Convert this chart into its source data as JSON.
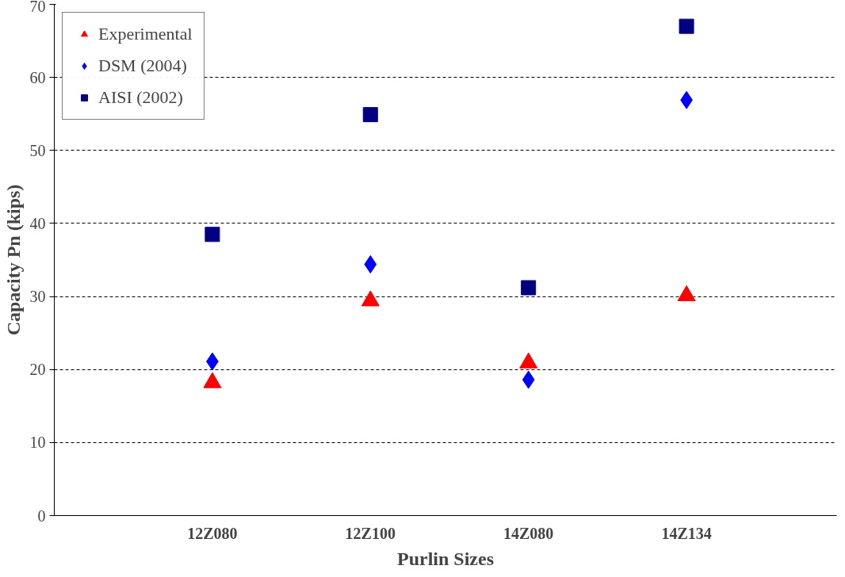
{
  "chart_data": {
    "type": "scatter",
    "xlabel": "Purlin Sizes",
    "ylabel": "Capacity Pn (kips)",
    "categories": [
      "12Z080",
      "12Z100",
      "14Z080",
      "14Z134"
    ],
    "series": [
      {
        "name": "Experimental",
        "color": "#ff0000",
        "marker": "triangle",
        "values": [
          18.2,
          29.4,
          20.9,
          30.1
        ]
      },
      {
        "name": "DSM (2004)",
        "color": "#0000ff",
        "marker": "diamond",
        "values": [
          21.1,
          34.4,
          18.6,
          56.9
        ]
      },
      {
        "name": "AISI (2002)",
        "color": "#000080",
        "marker": "square",
        "values": [
          38.5,
          54.9,
          31.2,
          67.0
        ]
      }
    ],
    "ylim": [
      0,
      70
    ],
    "yticks": [
      0,
      10,
      20,
      30,
      40,
      50,
      60,
      70
    ],
    "grid": "y",
    "legend": "top left"
  }
}
